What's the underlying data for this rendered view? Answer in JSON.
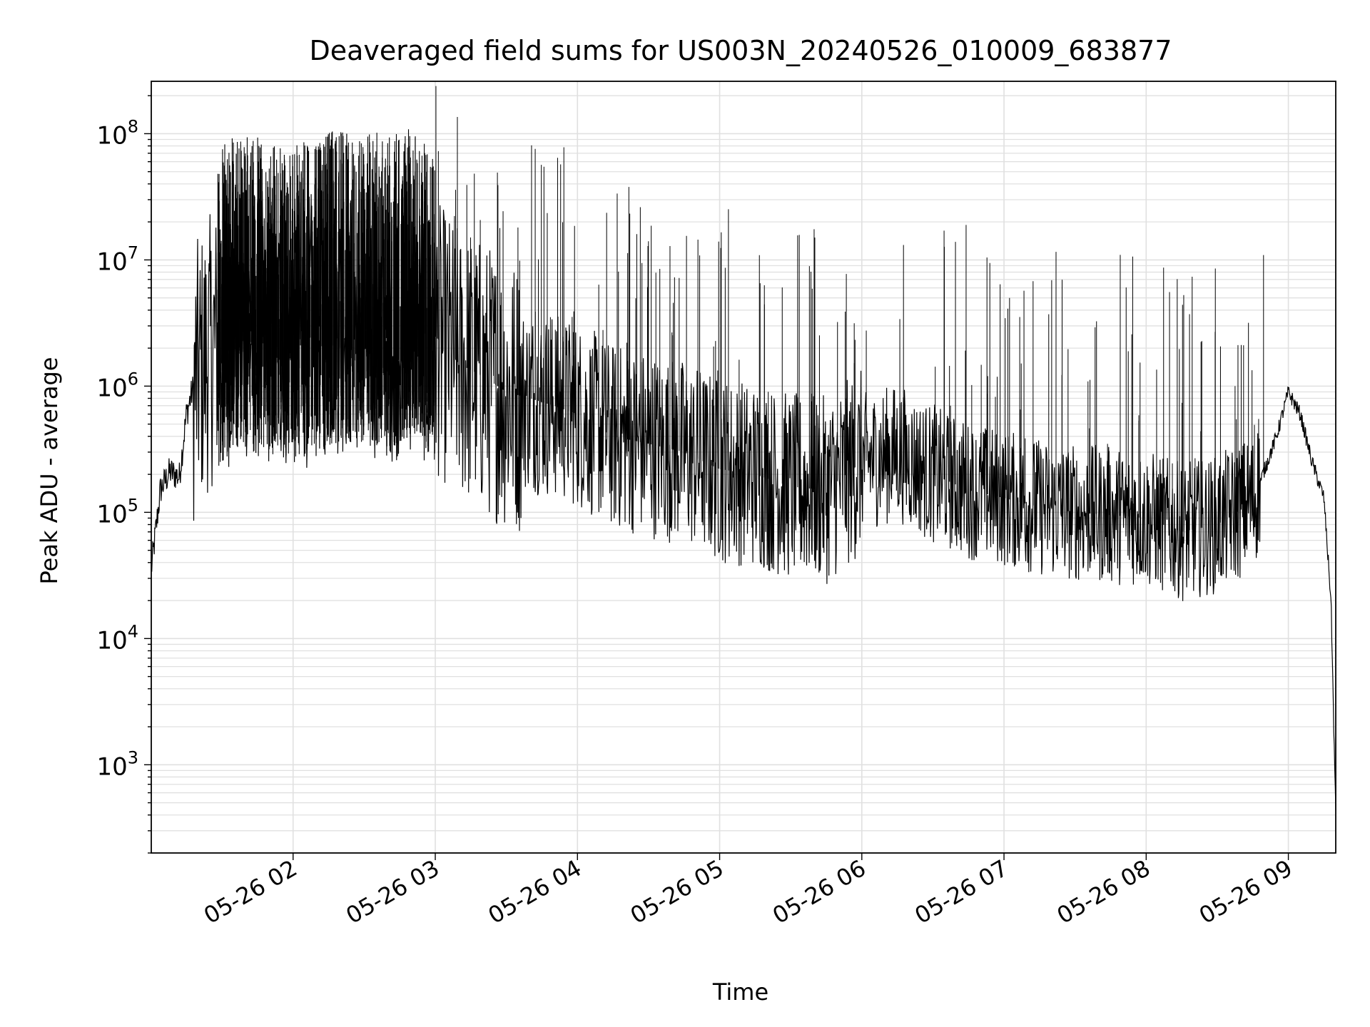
{
  "chart_data": {
    "type": "line",
    "title": "Deaveraged field sums for US003N_20240526_010009_683877",
    "xlabel": "Time",
    "ylabel": "Peak ADU - average",
    "yscale": "log",
    "xlim": [
      "2024-05-26 01:00:09",
      "2024-05-26 09:20:00"
    ],
    "ylim": [
      200,
      260000000
    ],
    "grid": true,
    "line_color": "#000000",
    "grid_color": "#e0e0e0",
    "x_ticks": [
      "05-26 02",
      "05-26 03",
      "05-26 04",
      "05-26 05",
      "05-26 06",
      "05-26 07",
      "05-26 08",
      "05-26 09"
    ],
    "y_ticks": [
      {
        "base": "10",
        "exp": "3",
        "value": 1000
      },
      {
        "base": "10",
        "exp": "4",
        "value": 10000
      },
      {
        "base": "10",
        "exp": "5",
        "value": 100000
      },
      {
        "base": "10",
        "exp": "6",
        "value": 1000000
      },
      {
        "base": "10",
        "exp": "7",
        "value": 10000000
      },
      {
        "base": "10",
        "exp": "8",
        "value": 100000000
      }
    ],
    "series": [
      {
        "x": [
          "2024-05-26 01:00:09",
          "2024-05-26 01:04:00",
          "2024-05-26 01:08:00",
          "2024-05-26 01:12:00",
          "2024-05-26 01:15:00",
          "2024-05-26 01:18:00",
          "2024-05-26 01:22:00",
          "2024-05-26 01:26:00",
          "2024-05-26 01:30:00",
          "2024-05-26 01:35:00",
          "2024-05-26 01:40:00",
          "2024-05-26 01:45:00",
          "2024-05-26 01:50:00",
          "2024-05-26 01:55:00",
          "2024-05-26 02:00:00",
          "2024-05-26 02:10:00",
          "2024-05-26 02:20:00",
          "2024-05-26 02:30:00",
          "2024-05-26 02:40:00",
          "2024-05-26 02:50:00",
          "2024-05-26 03:00:00",
          "2024-05-26 03:10:00",
          "2024-05-26 03:20:00",
          "2024-05-26 03:30:00",
          "2024-05-26 03:40:00",
          "2024-05-26 03:50:00",
          "2024-05-26 04:00:00",
          "2024-05-26 04:15:00",
          "2024-05-26 04:30:00",
          "2024-05-26 04:45:00",
          "2024-05-26 05:00:00",
          "2024-05-26 05:15:00",
          "2024-05-26 05:30:00",
          "2024-05-26 05:45:00",
          "2024-05-26 06:00:00",
          "2024-05-26 06:15:00",
          "2024-05-26 06:30:00",
          "2024-05-26 06:45:00",
          "2024-05-26 07:00:00",
          "2024-05-26 07:15:00",
          "2024-05-26 07:30:00",
          "2024-05-26 07:45:00",
          "2024-05-26 08:00:00",
          "2024-05-26 08:15:00",
          "2024-05-26 08:30:00",
          "2024-05-26 08:45:00",
          "2024-05-26 08:55:00",
          "2024-05-26 09:00:00",
          "2024-05-26 09:05:00",
          "2024-05-26 09:10:00",
          "2024-05-26 09:15:00",
          "2024-05-26 09:18:00",
          "2024-05-26 09:20:00"
        ],
        "y": [
          35000,
          150000,
          210000,
          190000,
          600000,
          1000000,
          1500000,
          2000000,
          2500000,
          3000000,
          3000000,
          3000000,
          2800000,
          2500000,
          2500000,
          3000000,
          3500000,
          3500000,
          3000000,
          3500000,
          2500000,
          1500000,
          1200000,
          900000,
          800000,
          700000,
          600000,
          400000,
          350000,
          300000,
          220000,
          200000,
          160000,
          150000,
          250000,
          300000,
          200000,
          150000,
          130000,
          110000,
          100000,
          95000,
          90000,
          70000,
          80000,
          120000,
          400000,
          900000,
          600000,
          250000,
          130000,
          20000,
          400
        ]
      }
    ]
  }
}
